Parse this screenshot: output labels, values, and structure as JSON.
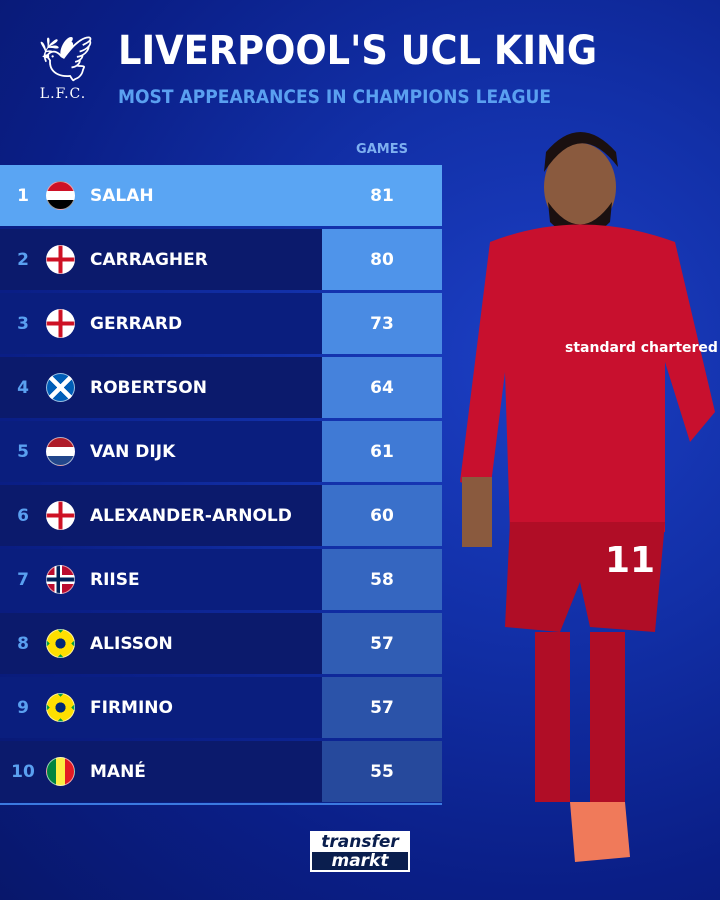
{
  "header": {
    "logo_text": "L.F.C.",
    "title": "LIVERPOOL'S UCL KING",
    "subtitle": "MOST APPEARANCES IN CHAMPIONS LEAGUE"
  },
  "table": {
    "column_header": "GAMES",
    "rows": [
      {
        "rank": "1",
        "flag": "egypt",
        "name": "SALAH",
        "games": "81",
        "cell_color": "#5aa5f3"
      },
      {
        "rank": "2",
        "flag": "england",
        "name": "CARRAGHER",
        "games": "80",
        "cell_color": "#4f94ea"
      },
      {
        "rank": "3",
        "flag": "england",
        "name": "GERRARD",
        "games": "73",
        "cell_color": "#4a8be3"
      },
      {
        "rank": "4",
        "flag": "scotland",
        "name": "ROBERTSON",
        "games": "64",
        "cell_color": "#4582dc"
      },
      {
        "rank": "5",
        "flag": "netherlands",
        "name": "VAN DIJK",
        "games": "61",
        "cell_color": "#407ad5"
      },
      {
        "rank": "6",
        "flag": "england",
        "name": "ALEXANDER-ARNOLD",
        "games": "60",
        "cell_color": "#3a70ca"
      },
      {
        "rank": "7",
        "flag": "norway",
        "name": "RIISE",
        "games": "58",
        "cell_color": "#3566c0"
      },
      {
        "rank": "8",
        "flag": "brazil",
        "name": "ALISSON",
        "games": "57",
        "cell_color": "#305db4"
      },
      {
        "rank": "9",
        "flag": "brazil",
        "name": "FIRMINO",
        "games": "57",
        "cell_color": "#2b53a9"
      },
      {
        "rank": "10",
        "flag": "senegal",
        "name": "MANÉ",
        "games": "55",
        "cell_color": "#26499c"
      }
    ]
  },
  "footer": {
    "brand_line1": "transfer",
    "brand_line2": "markt"
  },
  "player": {
    "shirt_number": "11",
    "sponsor": "standard chartered"
  }
}
